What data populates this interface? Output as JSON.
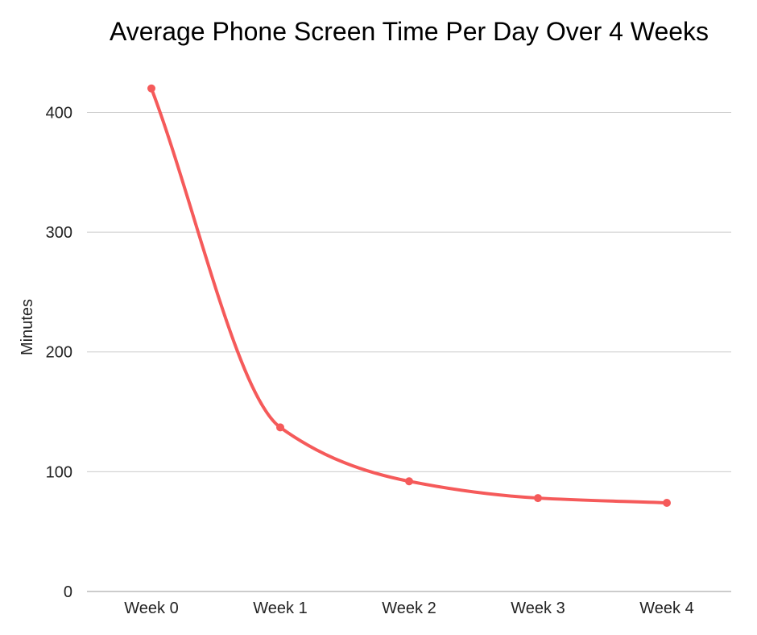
{
  "chart_data": {
    "type": "line",
    "title": "Average Phone Screen Time Per Day Over 4 Weeks",
    "xlabel": "",
    "ylabel": "Minutes",
    "categories": [
      "Week 0",
      "Week 1",
      "Week 2",
      "Week 3",
      "Week 4"
    ],
    "series": [
      {
        "values": [
          420,
          137,
          92,
          78,
          74
        ],
        "color": "#f55a5a"
      }
    ],
    "ylim": [
      0,
      440
    ],
    "yticks": [
      0,
      100,
      200,
      300,
      400
    ],
    "grid": true,
    "legend": "none",
    "smooth": true
  }
}
